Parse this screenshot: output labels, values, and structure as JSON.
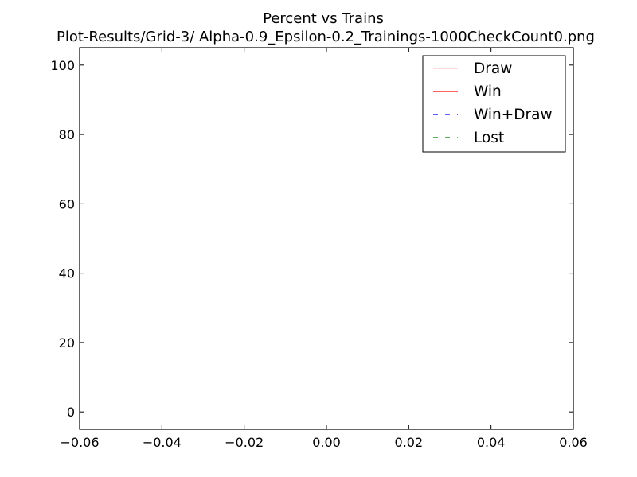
{
  "chart_data": {
    "type": "line",
    "title": "Percent vs Trains",
    "subtitle": "Plot-Results/Grid-3/ Alpha-0.9_Epsilon-0.2_Trainings-1000CheckCount0.png",
    "xlabel": "",
    "ylabel": "",
    "xlim": [
      -0.06,
      0.06
    ],
    "ylim": [
      -5,
      105
    ],
    "x_ticks": [
      -0.06,
      -0.04,
      -0.02,
      0.0,
      0.02,
      0.04,
      0.06
    ],
    "x_tick_labels": [
      "−0.06",
      "−0.04",
      "−0.02",
      "0.00",
      "0.02",
      "0.04",
      "0.06"
    ],
    "y_ticks": [
      0,
      20,
      40,
      60,
      80,
      100
    ],
    "y_tick_labels": [
      "0",
      "20",
      "40",
      "60",
      "80",
      "100"
    ],
    "grid": false,
    "legend_position": "top-right",
    "series": [
      {
        "name": "Draw",
        "color": "#ffc0cb",
        "linestyle": "solid",
        "values": []
      },
      {
        "name": "Win",
        "color": "#ff0000",
        "linestyle": "solid",
        "values": []
      },
      {
        "name": "Win+Draw",
        "color": "#0000ff",
        "linestyle": "dashed",
        "values": []
      },
      {
        "name": "Lost",
        "color": "#008000",
        "linestyle": "dashed",
        "values": []
      }
    ]
  }
}
